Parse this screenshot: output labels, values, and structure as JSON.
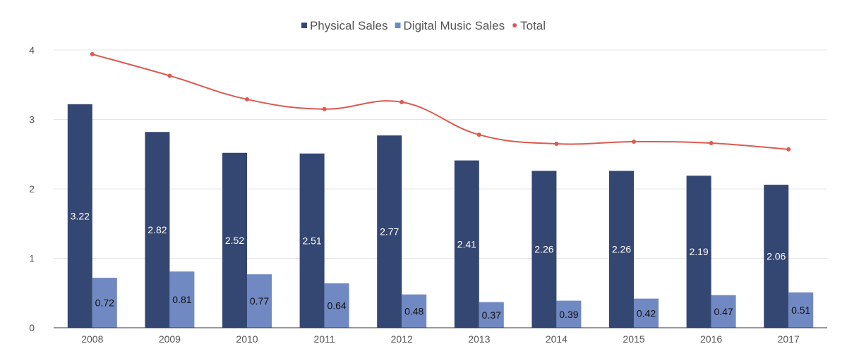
{
  "colors": {
    "physical": "#344672",
    "digital": "#7189c3",
    "total": "#dc5a50",
    "grid": "#e6e6e6",
    "axis": "#333333",
    "text": "#555555"
  },
  "chart_data": {
    "type": "bar",
    "title": "",
    "xlabel": "",
    "ylabel": "",
    "ylim": [
      0,
      4
    ],
    "yticks": [
      0,
      1,
      2,
      3,
      4
    ],
    "grid": true,
    "legend_position": "top-center",
    "categories": [
      "2008",
      "2009",
      "2010",
      "2011",
      "2012",
      "2013",
      "2014",
      "2015",
      "2016",
      "2017"
    ],
    "series": [
      {
        "name": "Physical Sales",
        "type": "bar",
        "color": "#344672",
        "label_color": "#ffffff",
        "values": [
          3.22,
          2.82,
          2.52,
          2.51,
          2.77,
          2.41,
          2.26,
          2.26,
          2.19,
          2.06
        ],
        "labels": [
          "3.22",
          "2.82",
          "2.52",
          "2.51",
          "2.77",
          "2.41",
          "2.26",
          "2.26",
          "2.19",
          "2.06"
        ]
      },
      {
        "name": "Digital Music Sales",
        "type": "bar",
        "color": "#7189c3",
        "label_color": "#111111",
        "values": [
          0.72,
          0.81,
          0.77,
          0.64,
          0.48,
          0.37,
          0.39,
          0.42,
          0.47,
          0.51
        ],
        "labels": [
          "0.72",
          "0.81",
          "0.77",
          "0.64",
          "0.48",
          "0.37",
          "0.39",
          "0.42",
          "0.47",
          "0.51"
        ]
      },
      {
        "name": "Total",
        "type": "line",
        "color": "#dc5a50",
        "values": [
          3.94,
          3.63,
          3.29,
          3.15,
          3.25,
          2.78,
          2.65,
          2.68,
          2.66,
          2.57
        ]
      }
    ]
  }
}
